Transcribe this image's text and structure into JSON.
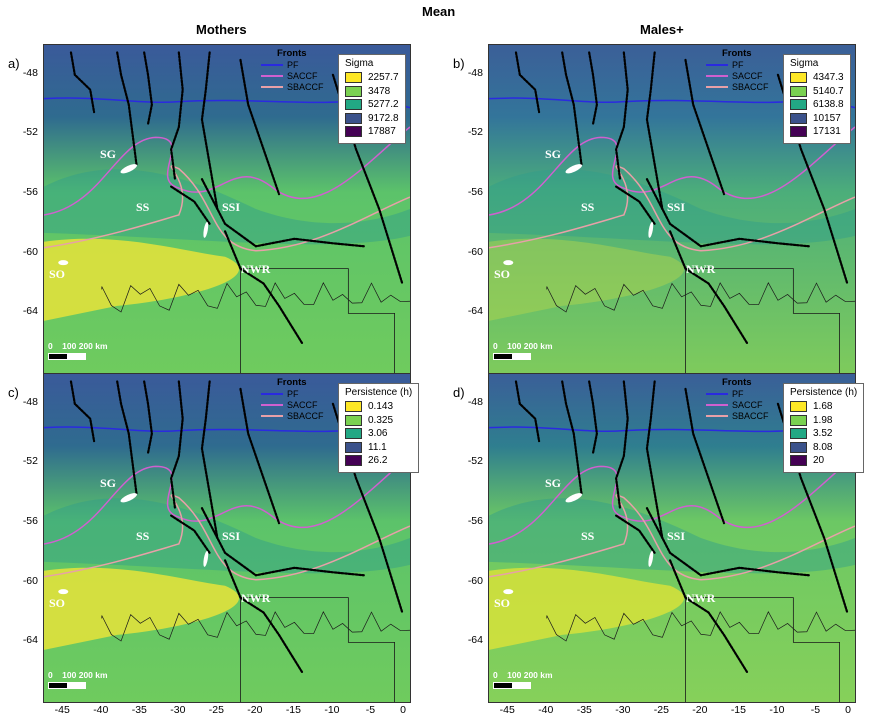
{
  "figure": {
    "title": "Mean",
    "col_titles": [
      "Mothers",
      "Males+"
    ]
  },
  "panels": [
    {
      "letter": "a)",
      "legend_title": "Sigma",
      "legend_values": [
        "2257.7",
        "3478",
        "5277.2",
        "9172.8",
        "17887"
      ],
      "palette": "bright"
    },
    {
      "letter": "b)",
      "legend_title": "Sigma",
      "legend_values": [
        "4347.3",
        "5140.7",
        "6138.8",
        "10157",
        "17131"
      ],
      "palette": "mid"
    },
    {
      "letter": "c)",
      "legend_title": "Persistence (h)",
      "legend_values": [
        "0.143",
        "0.325",
        "3.06",
        "11.1",
        "26.2"
      ],
      "palette": "bright"
    },
    {
      "letter": "d)",
      "legend_title": "Persistence (h)",
      "legend_values": [
        "1.68",
        "1.98",
        "3.52",
        "8.08",
        "20"
      ],
      "palette": "soft"
    }
  ],
  "fronts": {
    "heading": "Fronts",
    "items": [
      {
        "name": "PF",
        "color": "#2a2ae0"
      },
      {
        "name": "SACCF",
        "color": "#d060d0"
      },
      {
        "name": "SBACCF",
        "color": "#e8a0a8"
      }
    ]
  },
  "legend_colors": [
    "#fde725",
    "#7ad151",
    "#22a884",
    "#3b528b",
    "#440154"
  ],
  "place_labels": [
    "SG",
    "SS",
    "SSI",
    "SO",
    "NWR"
  ],
  "scale": {
    "labels": "0    100 200 km"
  },
  "axes": {
    "y_ticks": [
      "-48",
      "-52",
      "-56",
      "-60",
      "-64"
    ],
    "x_ticks": [
      "-45",
      "-40",
      "-35",
      "-30",
      "-25",
      "-20",
      "-15",
      "-10",
      "-5",
      "0"
    ]
  }
}
